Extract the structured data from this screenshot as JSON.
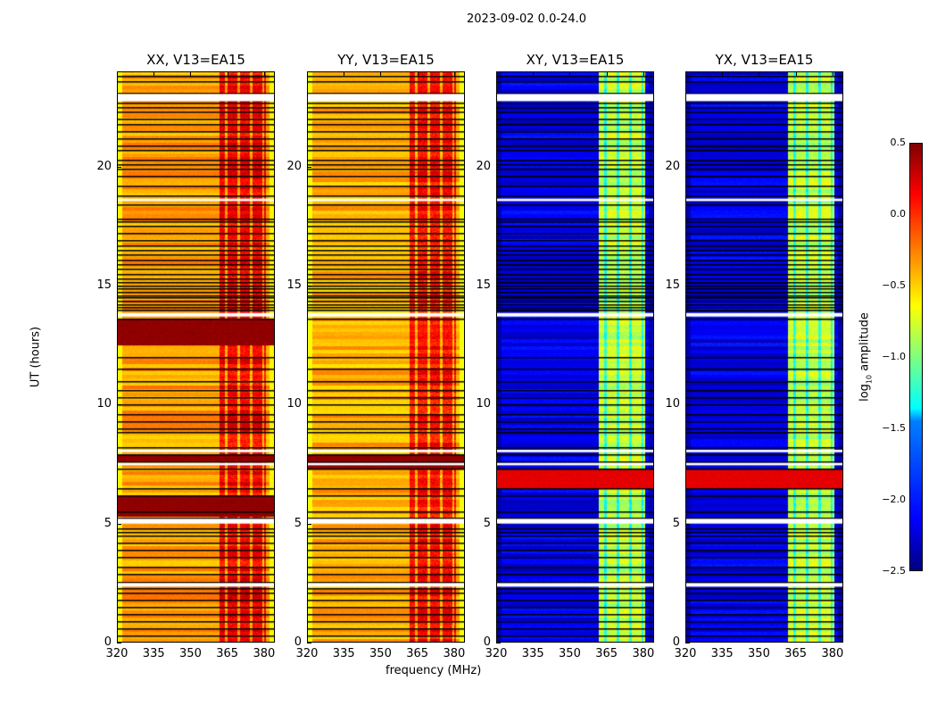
{
  "title": "2023-09-02 0.0-24.0",
  "chart_data": {
    "type": "heatmap",
    "title": "2023-09-02 0.0-24.0",
    "xlabel": "frequency (MHz)",
    "ylabel": "UT (hours)",
    "xlim": [
      320,
      384.4
    ],
    "ylim": [
      0,
      24
    ],
    "xticks": [
      "320",
      "335",
      "350",
      "365",
      "380"
    ],
    "xtick_values": [
      320,
      335,
      350,
      365,
      380
    ],
    "yticks": [
      "0",
      "5",
      "10",
      "15",
      "20"
    ],
    "ytick_values": [
      0,
      5,
      10,
      15,
      20
    ],
    "colormap": "jet",
    "colorbar": {
      "label_prefix": "log",
      "label_sub": "10",
      "label_suffix": " amplitude",
      "range": [
        -2.5,
        0.5
      ],
      "ticks": [
        "0.5",
        "0.0",
        "−0.5",
        "−1.0",
        "−1.5",
        "−2.0",
        "−2.5"
      ],
      "tick_values": [
        0.5,
        0.0,
        -0.5,
        -1.0,
        -1.5,
        -2.0,
        -2.5
      ]
    },
    "band_mhz": [
      361.5,
      380.5
    ],
    "band_stripes_mhz": [
      364.5,
      369.5,
      374.5,
      379.5
    ],
    "flagged_ut": [
      [
        2.35,
        2.5
      ],
      [
        5.0,
        5.2
      ],
      [
        7.45,
        7.55
      ],
      [
        8.0,
        8.1
      ],
      [
        13.7,
        13.85
      ],
      [
        18.55,
        18.65
      ],
      [
        22.75,
        23.05
      ]
    ],
    "scan_boundaries_ut": [
      0.3,
      0.6,
      0.9,
      1.2,
      1.5,
      1.8,
      2.1,
      2.3,
      2.55,
      2.9,
      3.2,
      3.6,
      3.9,
      4.2,
      4.5,
      4.65,
      4.8,
      5.25,
      5.5,
      6.2,
      6.5,
      7.3,
      7.6,
      7.9,
      8.2,
      8.85,
      9.0,
      9.3,
      9.6,
      10.0,
      10.3,
      10.6,
      11.0,
      11.5,
      12.0,
      13.6,
      14.0,
      14.1,
      14.2,
      14.35,
      14.5,
      14.6,
      14.75,
      14.9,
      15.0,
      15.15,
      15.3,
      15.5,
      15.7,
      15.9,
      16.1,
      16.3,
      16.5,
      16.7,
      16.9,
      17.2,
      17.5,
      17.7,
      17.8,
      18.4,
      18.8,
      19.2,
      19.6,
      19.9,
      20.1,
      20.3,
      20.7,
      20.9,
      21.2,
      21.5,
      21.8,
      22.0,
      22.3,
      22.5,
      22.7,
      23.1,
      23.6,
      23.8
    ],
    "series": [
      {
        "name": "XX, V13=EA15",
        "base_log_amp": -0.35,
        "band_log_amp": 0.15,
        "edge_log_amp": -0.6,
        "high_ut": [
          [
            5.3,
            6.2
          ],
          [
            7.6,
            7.9
          ],
          [
            12.5,
            13.6
          ]
        ],
        "high_log_amp": 0.45
      },
      {
        "name": "YY, V13=EA15",
        "base_log_amp": -0.4,
        "band_log_amp": 0.1,
        "edge_log_amp": -0.65,
        "high_ut": [
          [
            7.3,
            7.9
          ]
        ],
        "high_log_amp": 0.45
      },
      {
        "name": "XY, V13=EA15",
        "base_log_amp": -2.2,
        "band_log_amp": -0.8,
        "edge_log_amp": -2.35,
        "high_ut": [
          [
            6.5,
            7.3
          ]
        ],
        "high_log_amp": 0.2
      },
      {
        "name": "YX, V13=EA15",
        "base_log_amp": -2.2,
        "band_log_amp": -0.8,
        "edge_log_amp": -2.35,
        "high_ut": [
          [
            6.5,
            7.3
          ]
        ],
        "high_log_amp": 0.2
      }
    ]
  }
}
